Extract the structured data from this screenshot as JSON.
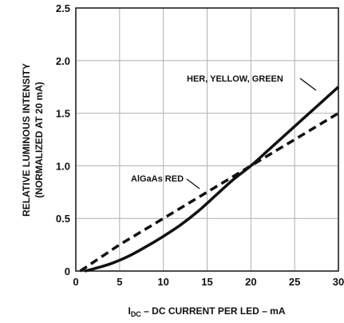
{
  "chart_data": {
    "type": "line",
    "xlabel_main": "I",
    "xlabel_sub": "DC",
    "xlabel_rest": " – DC CURRENT PER LED – mA",
    "ylabel_line1": "RELATIVE LUMINOUS INTENSITY",
    "ylabel_line2": "(NORMALIZED AT 20 mA)",
    "xlim": [
      0,
      30
    ],
    "ylim": [
      0,
      2.5
    ],
    "x_ticks": [
      0,
      5,
      10,
      15,
      20,
      25,
      30
    ],
    "y_ticks": [
      0,
      0.5,
      1.0,
      1.5,
      2.0,
      2.5
    ],
    "x_tick_labels": [
      "0",
      "5",
      "10",
      "15",
      "20",
      "25",
      "30"
    ],
    "y_tick_labels": [
      "0",
      "0.5",
      "1.0",
      "1.5",
      "2.0",
      "2.5"
    ],
    "grid": true,
    "series": [
      {
        "name": "HER, YELLOW, GREEN",
        "style": "solid",
        "x": [
          1,
          2,
          4,
          6,
          8,
          10,
          12,
          14,
          16,
          18,
          20,
          22,
          24,
          26,
          28,
          30
        ],
        "y": [
          0,
          0.02,
          0.07,
          0.14,
          0.23,
          0.33,
          0.44,
          0.57,
          0.72,
          0.87,
          1.0,
          1.15,
          1.3,
          1.45,
          1.6,
          1.75
        ]
      },
      {
        "name": "AlGaAs RED",
        "style": "dashed",
        "x": [
          0.5,
          5,
          10,
          15,
          20,
          25,
          30
        ],
        "y": [
          0,
          0.25,
          0.5,
          0.75,
          1.0,
          1.25,
          1.5
        ]
      }
    ],
    "annotations": [
      {
        "text": "HER, YELLOW, GREEN"
      },
      {
        "text": "AlGaAs RED"
      }
    ],
    "colors": {
      "line": "#111111",
      "grid": "#b0b0b0",
      "axis": "#111111"
    }
  }
}
